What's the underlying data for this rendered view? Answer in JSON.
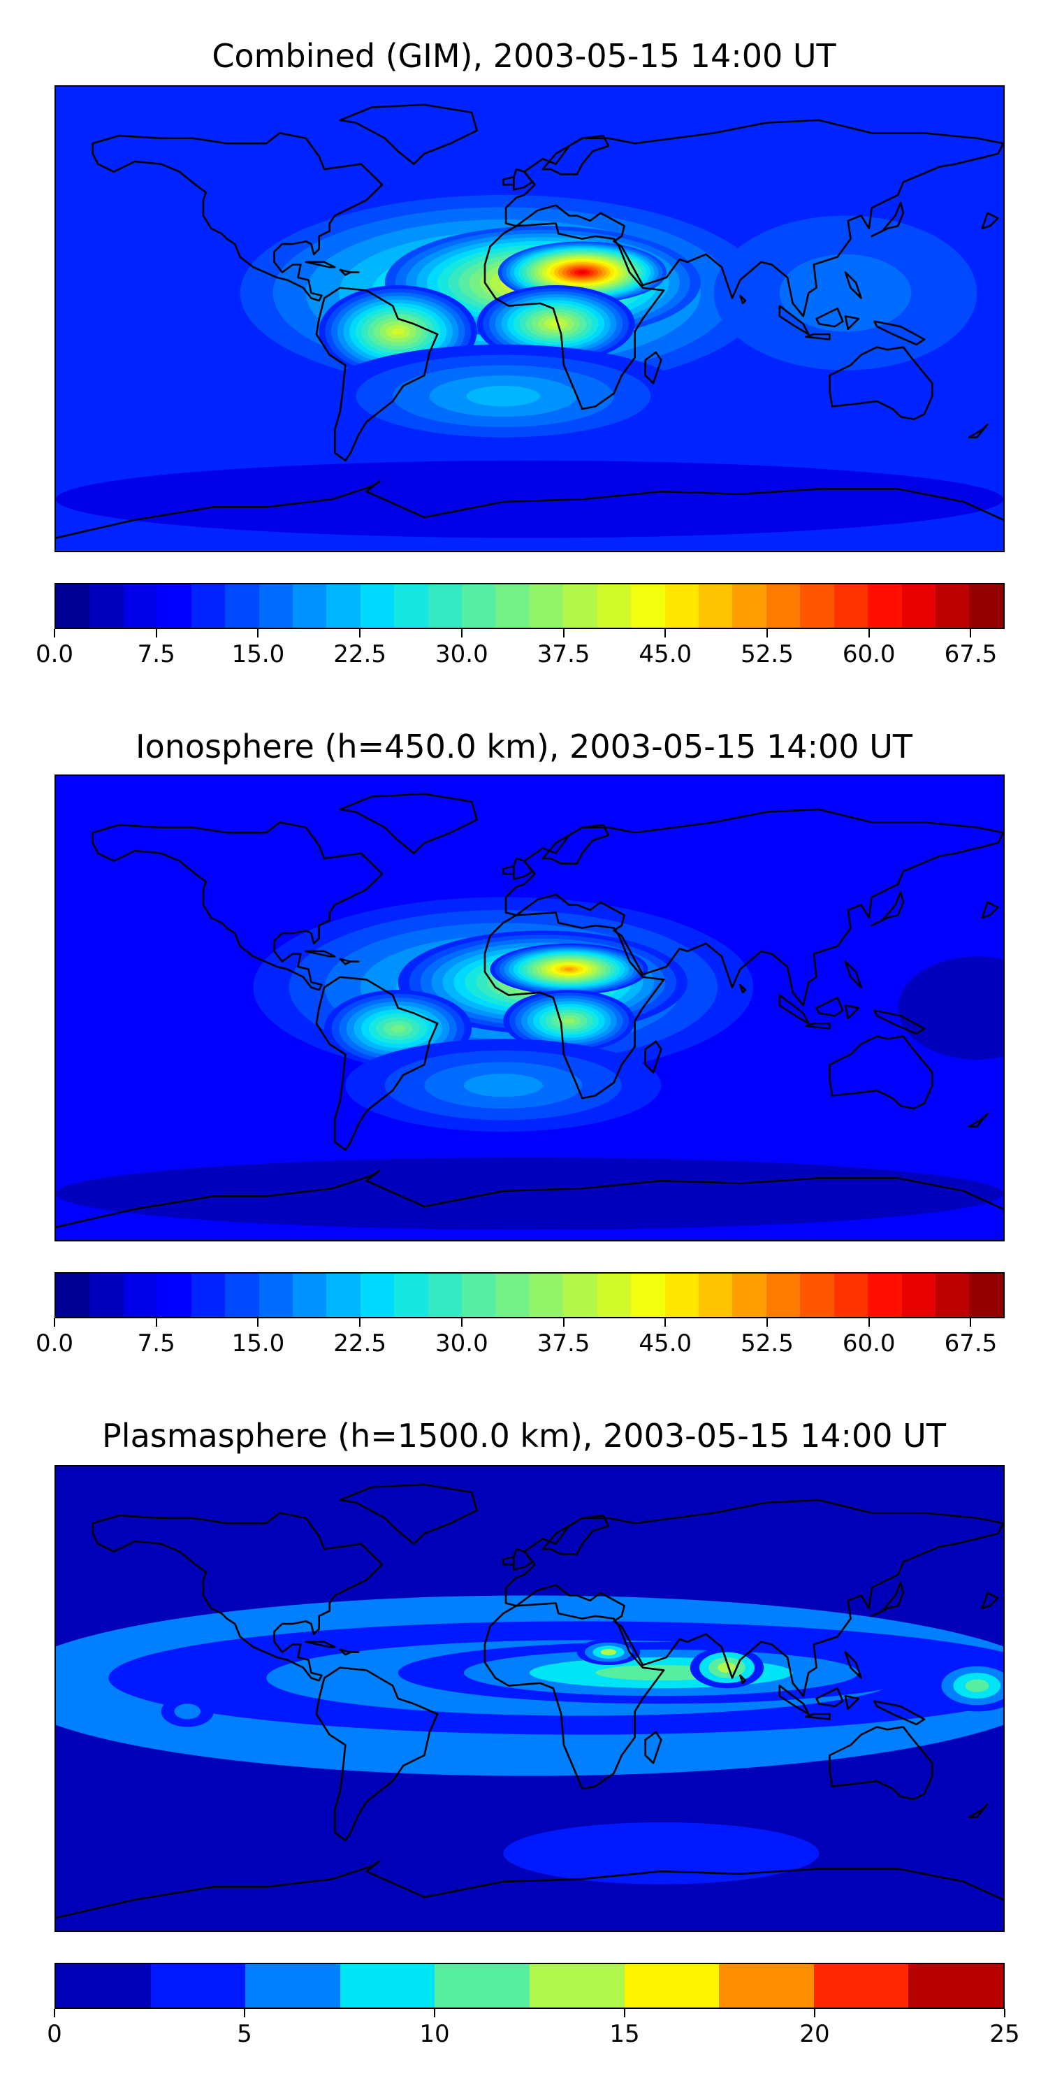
{
  "panels": [
    {
      "title": "Combined (GIM), 2003-05-15 14:00 UT",
      "colorbar": {
        "min": 0,
        "max": 70,
        "levels": 28,
        "tick_labels": [
          "0.0",
          "7.5",
          "15.0",
          "22.5",
          "30.0",
          "37.5",
          "45.0",
          "52.5",
          "60.0",
          "67.5"
        ],
        "tick_values": [
          0,
          7.5,
          15,
          22.5,
          30,
          37.5,
          45,
          52.5,
          60,
          67.5
        ]
      },
      "background_value": 10,
      "blobs": [
        {
          "lon": -10,
          "lat": 10,
          "rx": 100,
          "ry": 38,
          "v": 30
        },
        {
          "lon": 5,
          "lat": 14,
          "rx": 60,
          "ry": 22,
          "v": 48
        },
        {
          "lon": 20,
          "lat": 18,
          "rx": 32,
          "ry": 12,
          "v": 63
        },
        {
          "lon": -50,
          "lat": -5,
          "rx": 30,
          "ry": 18,
          "v": 42
        },
        {
          "lon": 10,
          "lat": -2,
          "rx": 30,
          "ry": 15,
          "v": 42
        },
        {
          "lon": -10,
          "lat": -30,
          "rx": 70,
          "ry": 20,
          "v": 22
        },
        {
          "lon": 120,
          "lat": 10,
          "rx": 50,
          "ry": 30,
          "v": 15
        },
        {
          "lon": 0,
          "lat": -70,
          "rx": 180,
          "ry": 15,
          "v": 5
        }
      ]
    },
    {
      "title": "Ionosphere  (h=450.0 km), 2003-05-15 14:00 UT",
      "colorbar": {
        "min": 0,
        "max": 70,
        "levels": 28,
        "tick_labels": [
          "0.0",
          "7.5",
          "15.0",
          "22.5",
          "30.0",
          "37.5",
          "45.0",
          "52.5",
          "60.0",
          "67.5"
        ],
        "tick_values": [
          0,
          7.5,
          15,
          22.5,
          30,
          37.5,
          45,
          52.5,
          60,
          67.5
        ]
      },
      "background_value": 8,
      "blobs": [
        {
          "lon": -10,
          "lat": 8,
          "rx": 95,
          "ry": 35,
          "v": 26
        },
        {
          "lon": 5,
          "lat": 10,
          "rx": 55,
          "ry": 20,
          "v": 40
        },
        {
          "lon": 15,
          "lat": 15,
          "rx": 30,
          "ry": 10,
          "v": 50
        },
        {
          "lon": -50,
          "lat": -8,
          "rx": 28,
          "ry": 15,
          "v": 33
        },
        {
          "lon": 15,
          "lat": -5,
          "rx": 25,
          "ry": 12,
          "v": 36
        },
        {
          "lon": -10,
          "lat": -30,
          "rx": 60,
          "ry": 18,
          "v": 18
        },
        {
          "lon": 170,
          "lat": 0,
          "rx": 30,
          "ry": 20,
          "v": 4
        },
        {
          "lon": 0,
          "lat": -72,
          "rx": 180,
          "ry": 14,
          "v": 3
        }
      ]
    },
    {
      "title": "Plasmasphere (h=1500.0 km), 2003-05-15 14:00 UT",
      "colorbar": {
        "min": 0,
        "max": 25,
        "levels": 10,
        "tick_labels": [
          "0",
          "5",
          "10",
          "15",
          "20",
          "25"
        ],
        "tick_values": [
          0,
          5,
          10,
          15,
          20,
          25
        ]
      },
      "background_value": 2,
      "blobs": [
        {
          "lon": 0,
          "lat": 5,
          "rx": 200,
          "ry": 35,
          "v": 5.5
        },
        {
          "lon": 20,
          "lat": 8,
          "rx": 180,
          "ry": 22,
          "v": 9
        },
        {
          "lon": 50,
          "lat": 10,
          "rx": 100,
          "ry": 12,
          "v": 11
        },
        {
          "lon": 75,
          "lat": 12,
          "rx": 14,
          "ry": 8,
          "v": 13
        },
        {
          "lon": 30,
          "lat": 18,
          "rx": 12,
          "ry": 5,
          "v": 12.5
        },
        {
          "lon": 170,
          "lat": 5,
          "rx": 18,
          "ry": 10,
          "v": 12
        },
        {
          "lon": -130,
          "lat": -5,
          "rx": 10,
          "ry": 6,
          "v": 6
        },
        {
          "lon": 50,
          "lat": -60,
          "rx": 60,
          "ry": 12,
          "v": 3.5
        }
      ]
    }
  ],
  "palette": [
    "#00007f",
    "#0000c8",
    "#0011ff",
    "#0058ff",
    "#0095ff",
    "#00d6ff",
    "#29ffce",
    "#5fff97",
    "#97ff60",
    "#ceff29",
    "#f4f802",
    "#ffbd00",
    "#ff8200",
    "#ff4700",
    "#e30000",
    "#7f0000"
  ],
  "coastline_color": "#000000"
}
